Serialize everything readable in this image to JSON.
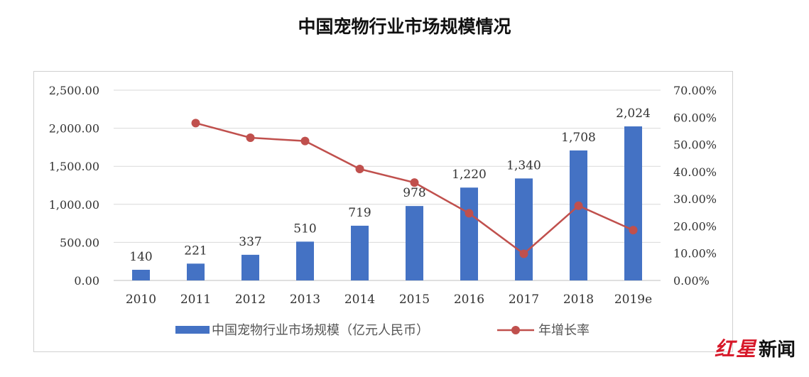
{
  "chart_data": {
    "type": "bar",
    "title": "中国宠物行业市场规模情况",
    "categories": [
      "2010",
      "2011",
      "2012",
      "2013",
      "2014",
      "2015",
      "2016",
      "2017",
      "2018",
      "2019e"
    ],
    "series": [
      {
        "name": "中国宠物行业市场规模（亿元人民币）",
        "type": "bar",
        "axis": "left",
        "color": "#4472C4",
        "values": [
          140,
          221,
          337,
          510,
          719,
          978,
          1220,
          1340,
          1708,
          2024
        ],
        "labels": [
          "140",
          "221",
          "337",
          "510",
          "719",
          "978",
          "1,220",
          "1,340",
          "1,708",
          "2,024"
        ]
      },
      {
        "name": "年增长率",
        "type": "line",
        "axis": "right",
        "color": "#C0504D",
        "values": [
          null,
          0.579,
          0.525,
          0.513,
          0.41,
          0.36,
          0.247,
          0.098,
          0.275,
          0.185
        ]
      }
    ],
    "y_left": {
      "min": 0,
      "max": 2500,
      "ticks": [
        "0.00",
        "500.00",
        "1,000.00",
        "1,500.00",
        "2,000.00",
        "2,500.00"
      ]
    },
    "y_right": {
      "min": 0,
      "max": 0.7,
      "ticks": [
        "0.00%",
        "10.00%",
        "20.00%",
        "30.00%",
        "40.00%",
        "50.00%",
        "60.00%",
        "70.00%"
      ]
    },
    "grid": true,
    "legend_position": "bottom"
  },
  "watermark": {
    "text": "红星新闻"
  }
}
